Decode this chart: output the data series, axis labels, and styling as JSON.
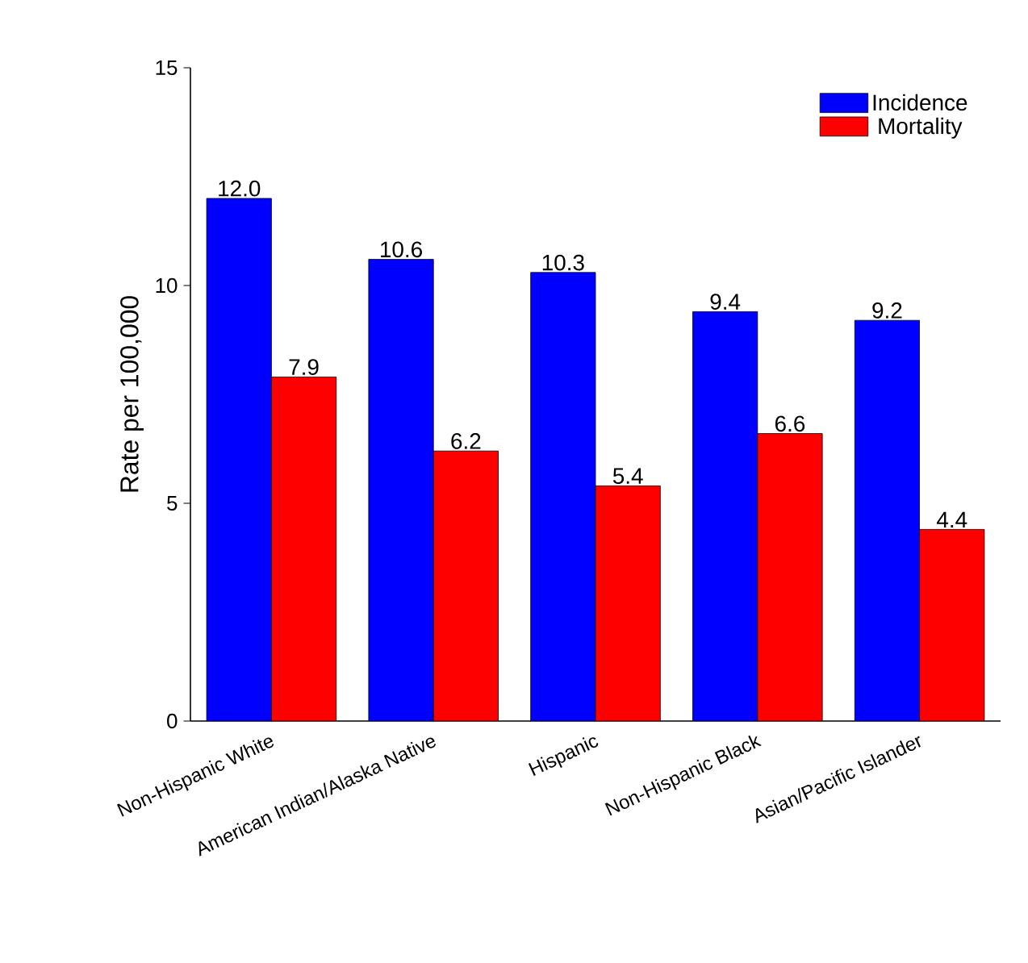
{
  "chart_data": {
    "type": "bar",
    "ylabel": "Rate per 100,000",
    "categories": [
      "Non-Hispanic White",
      "American Indian/Alaska Native",
      "Hispanic",
      "Non-Hispanic Black",
      "Asian/Pacific Islander"
    ],
    "series": [
      {
        "name": "Incidence",
        "color": "#0000ff",
        "values": [
          12.0,
          10.6,
          10.3,
          9.4,
          9.2
        ],
        "value_labels": [
          "12.0",
          "10.6",
          "10.3",
          "9.4",
          "9.2"
        ]
      },
      {
        "name": "Mortality",
        "color": "#ff0000",
        "values": [
          7.9,
          6.2,
          5.4,
          6.6,
          4.4
        ],
        "value_labels": [
          "7.9",
          "6.2",
          "5.4",
          "6.6",
          "4.4"
        ]
      }
    ],
    "ylim": [
      0,
      15
    ],
    "yticks": [
      0,
      5,
      10,
      15
    ],
    "legend": "top right",
    "grid": false
  }
}
